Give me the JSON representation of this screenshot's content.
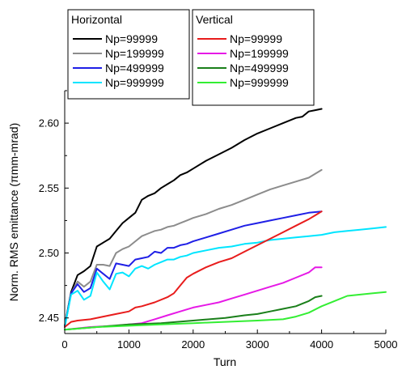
{
  "chart_data": {
    "type": "line",
    "xlabel": "Turn",
    "ylabel": "Norm. RMS emittance (πmm-mrad)",
    "xlim": [
      0,
      5000
    ],
    "ylim": [
      2.438,
      2.625
    ],
    "xticks": [
      0,
      1000,
      2000,
      3000,
      4000,
      5000
    ],
    "yticks": [
      2.45,
      2.5,
      2.55,
      2.6
    ],
    "x_tick_labels": [
      "0",
      "1000",
      "2000",
      "3000",
      "4000",
      "5000"
    ],
    "y_tick_labels": [
      "2.45",
      "2.50",
      "2.55",
      "2.60"
    ],
    "grid": false,
    "legend_groups": [
      {
        "title": "Horizontal",
        "placement": "top-left-outside"
      },
      {
        "title": "Vertical",
        "placement": "top-center-outside"
      }
    ],
    "series": [
      {
        "name": "Np=99999",
        "group": "Horizontal",
        "color": "#000000",
        "x": [
          0,
          100,
          200,
          300,
          400,
          500,
          600,
          700,
          800,
          900,
          1000,
          1100,
          1200,
          1300,
          1400,
          1500,
          1600,
          1700,
          1800,
          1900,
          2000,
          2200,
          2400,
          2600,
          2800,
          3000,
          3200,
          3400,
          3600,
          3700,
          3800,
          3900,
          4000
        ],
        "y": [
          2.444,
          2.47,
          2.483,
          2.486,
          2.49,
          2.505,
          2.508,
          2.511,
          2.517,
          2.523,
          2.527,
          2.531,
          2.541,
          2.544,
          2.546,
          2.55,
          2.553,
          2.556,
          2.56,
          2.562,
          2.565,
          2.571,
          2.576,
          2.581,
          2.587,
          2.592,
          2.596,
          2.6,
          2.604,
          2.605,
          2.609,
          2.61,
          2.611
        ]
      },
      {
        "name": "Np=199999",
        "group": "Horizontal",
        "color": "#8c8c8c",
        "x": [
          0,
          100,
          200,
          300,
          400,
          500,
          600,
          700,
          800,
          900,
          1000,
          1100,
          1200,
          1300,
          1400,
          1500,
          1600,
          1700,
          1800,
          1900,
          2000,
          2200,
          2400,
          2600,
          2800,
          3000,
          3200,
          3400,
          3600,
          3800,
          4000
        ],
        "y": [
          2.443,
          2.469,
          2.478,
          2.474,
          2.478,
          2.491,
          2.491,
          2.49,
          2.5,
          2.503,
          2.505,
          2.509,
          2.513,
          2.515,
          2.517,
          2.518,
          2.52,
          2.521,
          2.523,
          2.525,
          2.527,
          2.53,
          2.534,
          2.537,
          2.541,
          2.545,
          2.549,
          2.552,
          2.555,
          2.558,
          2.564
        ]
      },
      {
        "name": "Np=499999",
        "group": "Horizontal",
        "color": "#1f1fe6",
        "x": [
          0,
          100,
          200,
          300,
          400,
          500,
          600,
          700,
          800,
          900,
          1000,
          1100,
          1200,
          1300,
          1400,
          1500,
          1600,
          1700,
          1800,
          1900,
          2000,
          2200,
          2400,
          2600,
          2800,
          3000,
          3200,
          3400,
          3600,
          3800,
          4000
        ],
        "y": [
          2.443,
          2.469,
          2.476,
          2.47,
          2.473,
          2.488,
          2.484,
          2.48,
          2.492,
          2.491,
          2.49,
          2.495,
          2.496,
          2.497,
          2.501,
          2.5,
          2.504,
          2.504,
          2.506,
          2.507,
          2.509,
          2.512,
          2.515,
          2.518,
          2.521,
          2.523,
          2.525,
          2.527,
          2.529,
          2.531,
          2.532
        ]
      },
      {
        "name": "Np=999999",
        "group": "Horizontal",
        "color": "#00e5ff",
        "x": [
          0,
          100,
          200,
          300,
          400,
          500,
          600,
          700,
          800,
          900,
          1000,
          1100,
          1200,
          1300,
          1400,
          1500,
          1600,
          1700,
          1800,
          1900,
          2000,
          2200,
          2400,
          2600,
          2800,
          3000,
          3200,
          3400,
          3600,
          3800,
          4000,
          4200,
          4400,
          4600,
          4800,
          5000
        ],
        "y": [
          2.443,
          2.468,
          2.471,
          2.464,
          2.467,
          2.485,
          2.478,
          2.472,
          2.484,
          2.485,
          2.482,
          2.488,
          2.49,
          2.488,
          2.491,
          2.493,
          2.495,
          2.495,
          2.497,
          2.498,
          2.5,
          2.502,
          2.504,
          2.505,
          2.507,
          2.508,
          2.51,
          2.511,
          2.512,
          2.513,
          2.514,
          2.516,
          2.517,
          2.518,
          2.519,
          2.52
        ]
      },
      {
        "name": "Np=99999",
        "group": "Vertical",
        "color": "#e81c1c",
        "x": [
          0,
          100,
          200,
          400,
          600,
          800,
          1000,
          1100,
          1200,
          1400,
          1600,
          1700,
          1800,
          1900,
          2000,
          2200,
          2400,
          2600,
          2800,
          3000,
          3200,
          3400,
          3600,
          3800,
          3900,
          4000
        ],
        "y": [
          2.443,
          2.447,
          2.448,
          2.449,
          2.451,
          2.453,
          2.455,
          2.458,
          2.459,
          2.462,
          2.466,
          2.469,
          2.475,
          2.481,
          2.484,
          2.489,
          2.493,
          2.496,
          2.501,
          2.506,
          2.511,
          2.516,
          2.521,
          2.526,
          2.529,
          2.532
        ]
      },
      {
        "name": "Np=199999",
        "group": "Vertical",
        "color": "#e619e6",
        "x": [
          0,
          400,
          800,
          1200,
          1400,
          1600,
          1800,
          2000,
          2200,
          2400,
          2600,
          2800,
          3000,
          3200,
          3400,
          3600,
          3800,
          3900,
          4000
        ],
        "y": [
          2.441,
          2.443,
          2.444,
          2.446,
          2.449,
          2.452,
          2.455,
          2.458,
          2.46,
          2.462,
          2.465,
          2.468,
          2.471,
          2.474,
          2.477,
          2.481,
          2.485,
          2.489,
          2.489
        ]
      },
      {
        "name": "Np=499999",
        "group": "Vertical",
        "color": "#1a7f1a",
        "x": [
          0,
          500,
          1000,
          1500,
          2000,
          2500,
          2800,
          3000,
          3200,
          3400,
          3600,
          3700,
          3800,
          3900,
          4000
        ],
        "y": [
          2.441,
          2.443,
          2.445,
          2.446,
          2.448,
          2.45,
          2.452,
          2.453,
          2.455,
          2.457,
          2.459,
          2.461,
          2.463,
          2.466,
          2.467
        ]
      },
      {
        "name": "Np=999999",
        "group": "Vertical",
        "color": "#33ee33",
        "x": [
          0,
          500,
          1000,
          1500,
          2000,
          2500,
          3000,
          3400,
          3600,
          3800,
          4000,
          4200,
          4400,
          4600,
          4800,
          5000
        ],
        "y": [
          2.441,
          2.443,
          2.444,
          2.445,
          2.446,
          2.447,
          2.448,
          2.449,
          2.451,
          2.454,
          2.459,
          2.463,
          2.467,
          2.468,
          2.469,
          2.47
        ]
      }
    ]
  }
}
